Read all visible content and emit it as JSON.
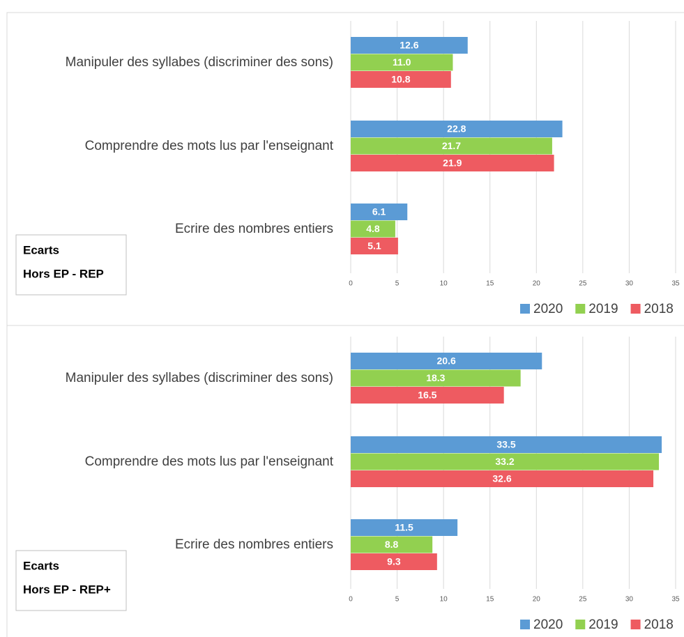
{
  "chart_data": [
    {
      "type": "bar",
      "orientation": "horizontal",
      "categories": [
        "Manipuler des syllabes (discriminer des sons)",
        "Comprendre des mots lus par l'enseignant",
        "Ecrire des nombres entiers"
      ],
      "series": [
        {
          "name": "2020",
          "color": "#5b9bd5",
          "values": [
            12.6,
            22.8,
            6.1
          ],
          "value_labels": [
            "12.6",
            "22.8",
            "6.1"
          ]
        },
        {
          "name": "2019",
          "color": "#92d050",
          "values": [
            11.0,
            21.7,
            4.8
          ],
          "value_labels": [
            "11.0",
            "21.7",
            "4.8"
          ]
        },
        {
          "name": "2018",
          "color": "#ee5b61",
          "values": [
            10.8,
            21.9,
            5.1
          ],
          "value_labels": [
            "10.8",
            "21.9",
            "5.1"
          ]
        }
      ],
      "xlim": [
        0,
        35
      ],
      "xticks": [
        0,
        5,
        10,
        15,
        20,
        25,
        30,
        35
      ],
      "grid": true,
      "legend": "bottom-right",
      "annotation": [
        "Ecarts",
        "Hors EP - REP"
      ]
    },
    {
      "type": "bar",
      "orientation": "horizontal",
      "categories": [
        "Manipuler des syllabes (discriminer des sons)",
        "Comprendre des mots lus par l'enseignant",
        "Ecrire des nombres entiers"
      ],
      "series": [
        {
          "name": "2020",
          "color": "#5b9bd5",
          "values": [
            20.6,
            33.5,
            11.5
          ],
          "value_labels": [
            "20.6",
            "33.5",
            "11.5"
          ]
        },
        {
          "name": "2019",
          "color": "#92d050",
          "values": [
            18.3,
            33.2,
            8.8
          ],
          "value_labels": [
            "18.3",
            "33.2",
            "8.8"
          ]
        },
        {
          "name": "2018",
          "color": "#ee5b61",
          "values": [
            16.5,
            32.6,
            9.3
          ],
          "value_labels": [
            "16.5",
            "32.6",
            "9.3"
          ]
        }
      ],
      "xlim": [
        0,
        35
      ],
      "xticks": [
        0,
        5,
        10,
        15,
        20,
        25,
        30,
        35
      ],
      "grid": true,
      "legend": "bottom-right",
      "annotation": [
        "Ecarts",
        "Hors EP - REP+"
      ]
    }
  ]
}
